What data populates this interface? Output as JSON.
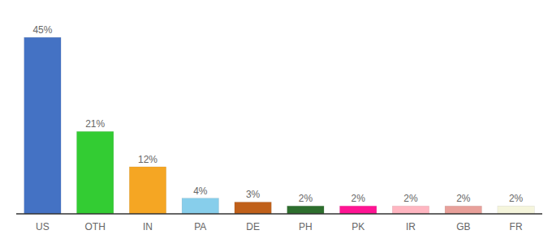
{
  "chart_data": {
    "type": "bar",
    "categories": [
      "US",
      "OTH",
      "IN",
      "PA",
      "DE",
      "PH",
      "PK",
      "IR",
      "GB",
      "FR"
    ],
    "values": [
      45,
      21,
      12,
      4,
      3,
      2,
      2,
      2,
      2,
      2
    ],
    "value_labels": [
      "45%",
      "21%",
      "12%",
      "4%",
      "3%",
      "2%",
      "2%",
      "2%",
      "2%",
      "2%"
    ],
    "colors": [
      "#4472c4",
      "#33cc33",
      "#f5a623",
      "#87ceeb",
      "#c0601a",
      "#2d6e2d",
      "#ff1493",
      "#ffb6c1",
      "#e8a09a",
      "#f5f5dc"
    ],
    "ylim": [
      0,
      50
    ],
    "data_labels": true,
    "tick_labels": "x",
    "grid": false
  }
}
